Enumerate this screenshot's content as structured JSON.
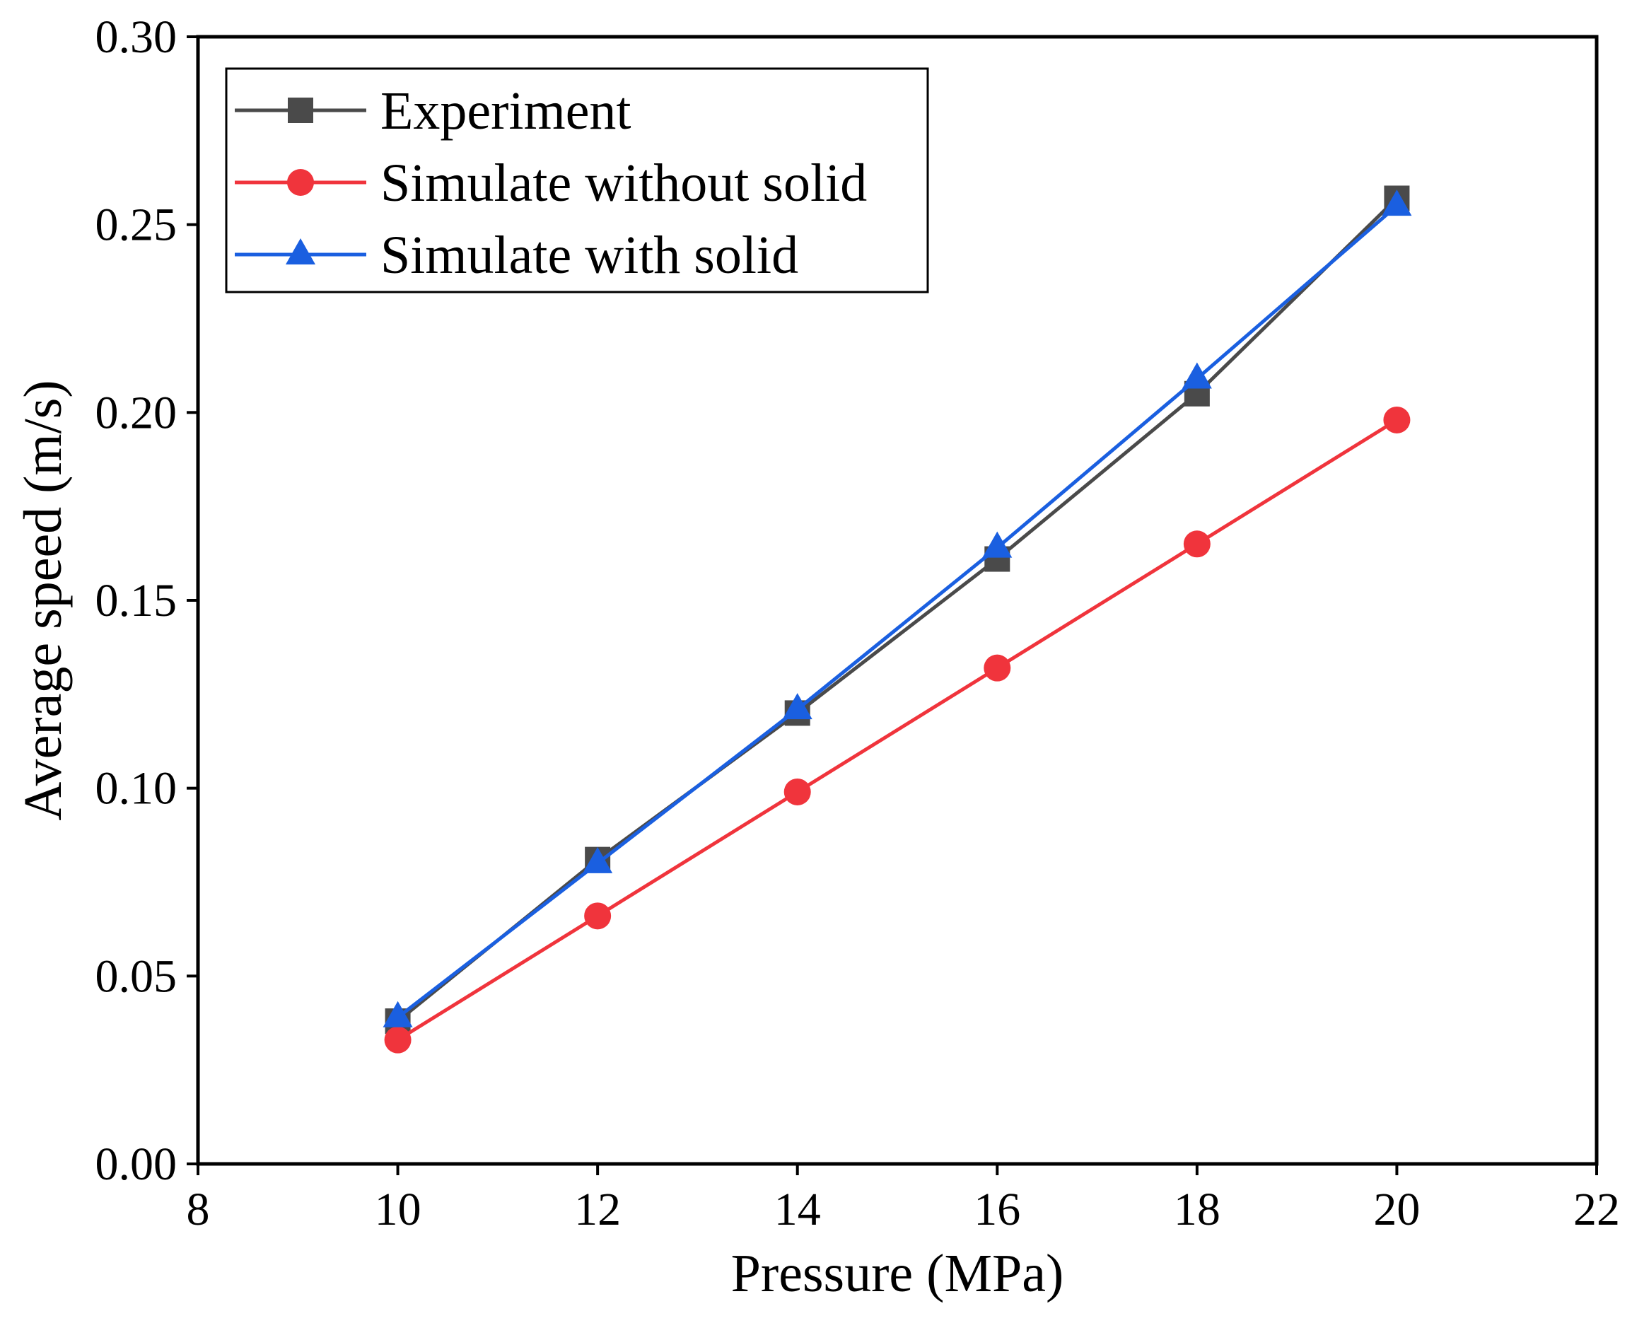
{
  "chart_data": {
    "type": "line",
    "title": "",
    "xlabel": "Pressure (MPa)",
    "ylabel": "Average speed (m/s)",
    "xlim": [
      8,
      22
    ],
    "ylim": [
      0,
      0.3
    ],
    "x_ticks": [
      8,
      10,
      12,
      14,
      16,
      18,
      20,
      22
    ],
    "x_tick_labels": [
      "8",
      "10",
      "12",
      "14",
      "16",
      "18",
      "20",
      "22"
    ],
    "y_ticks": [
      0,
      0.05,
      0.1,
      0.15,
      0.2,
      0.25,
      0.3
    ],
    "y_tick_labels": [
      "0.00",
      "0.05",
      "0.10",
      "0.15",
      "0.20",
      "0.25",
      "0.30"
    ],
    "grid": false,
    "legend_position": "top-left",
    "x": [
      10,
      12,
      14,
      16,
      18,
      20
    ],
    "series": [
      {
        "name": "Experiment",
        "marker": "square",
        "color": "#4a4a4a",
        "values": [
          0.038,
          0.081,
          0.12,
          0.161,
          0.205,
          0.257
        ]
      },
      {
        "name": "Simulate without solid",
        "marker": "circle",
        "color": "#f0343c",
        "values": [
          0.033,
          0.066,
          0.099,
          0.132,
          0.165,
          0.198
        ]
      },
      {
        "name": "Simulate with solid",
        "marker": "triangle",
        "color": "#1a5fe0",
        "values": [
          0.039,
          0.08,
          0.121,
          0.164,
          0.209,
          0.255
        ]
      }
    ]
  }
}
